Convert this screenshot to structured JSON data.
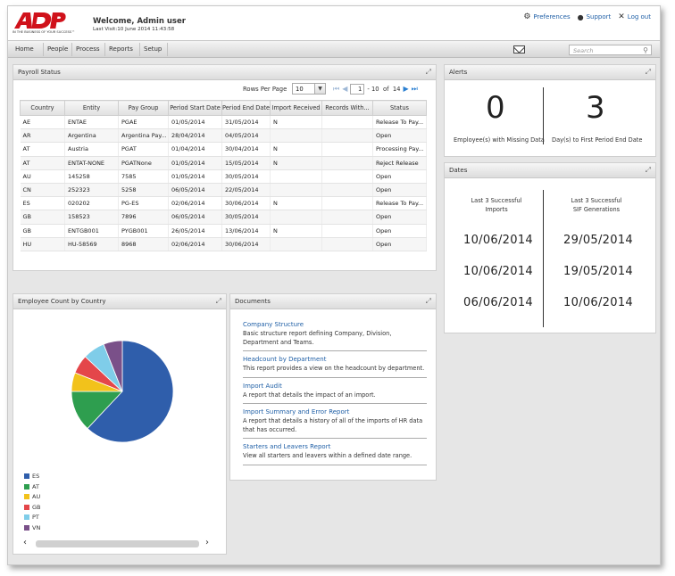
{
  "header": {
    "logo_text": "ADP",
    "logo_tagline": "IN THE BUSINESS OF YOUR SUCCESS™",
    "welcome": "Welcome, Admin user",
    "last_visit": "Last Visit:10 June 2014 11:43:58",
    "links": {
      "preferences": "Preferences",
      "support": "Support",
      "logout": "Log out"
    }
  },
  "nav": {
    "items": [
      "Home",
      "People",
      "Process",
      "Reports",
      "Setup"
    ],
    "search_placeholder": "Search"
  },
  "payroll": {
    "title": "Payroll Status",
    "rows_per_page_label": "Rows Per Page",
    "rows_per_page_value": "10",
    "page_value": "1",
    "page_range": "- 10  of  14",
    "columns": [
      "Country",
      "Entity",
      "Pay Group",
      "Period Start Date",
      "Period End Date",
      "Import Received",
      "Records With...",
      "Status"
    ],
    "rows": [
      [
        "AE",
        "ENTAE",
        "PGAE",
        "01/05/2014",
        "31/05/2014",
        "N",
        "",
        "Release To Pay..."
      ],
      [
        "AR",
        "Argentina",
        "Argentina Pay...",
        "28/04/2014",
        "04/05/2014",
        "",
        "",
        "Open"
      ],
      [
        "AT",
        "Austria",
        "PGAT",
        "01/04/2014",
        "30/04/2014",
        "N",
        "",
        "Processing Pay..."
      ],
      [
        "AT",
        "ENTAT-NONE",
        "PGATNone",
        "01/05/2014",
        "15/05/2014",
        "N",
        "",
        "Reject Release"
      ],
      [
        "AU",
        "145258",
        "7585",
        "01/05/2014",
        "30/05/2014",
        "",
        "",
        "Open"
      ],
      [
        "CN",
        "252323",
        "5258",
        "06/05/2014",
        "22/05/2014",
        "",
        "",
        "Open"
      ],
      [
        "ES",
        "020202",
        "PG-ES",
        "02/06/2014",
        "30/06/2014",
        "N",
        "",
        "Release To Pay..."
      ],
      [
        "GB",
        "158523",
        "7896",
        "06/05/2014",
        "30/05/2014",
        "",
        "",
        "Open"
      ],
      [
        "GB",
        "ENTGB001",
        "PYGB001",
        "26/05/2014",
        "13/06/2014",
        "N",
        "",
        "Open"
      ],
      [
        "HU",
        "HU-58569",
        "8968",
        "02/06/2014",
        "30/06/2014",
        "",
        "",
        "Open"
      ]
    ]
  },
  "alerts": {
    "title": "Alerts",
    "missing_data_count": "0",
    "missing_data_label": "Employee(s) with Missing Data",
    "days_count": "3",
    "days_label": "Day(s) to First Period End Date"
  },
  "dates": {
    "title": "Dates",
    "col1_header": [
      "Last 3 Successful",
      "Imports"
    ],
    "col2_header": [
      "Last 3 Successful",
      "SIF Generations"
    ],
    "imports": [
      "10/06/2014",
      "10/06/2014",
      "06/06/2014"
    ],
    "sif": [
      "29/05/2014",
      "19/05/2014",
      "10/06/2014"
    ]
  },
  "employee_count": {
    "title": "Employee Count by Country",
    "legend": [
      {
        "label": "ES",
        "color": "#2f5eab"
      },
      {
        "label": "AT",
        "color": "#2e9e4f"
      },
      {
        "label": "AU",
        "color": "#f2c21b"
      },
      {
        "label": "GB",
        "color": "#e4464a"
      },
      {
        "label": "PT",
        "color": "#7fcde9"
      },
      {
        "label": "VN",
        "color": "#7a5089"
      }
    ]
  },
  "chart_data": {
    "type": "pie",
    "title": "Employee Count by Country",
    "labels": [
      "ES",
      "AT",
      "AU",
      "GB",
      "PT",
      "VN"
    ],
    "values": [
      62,
      13,
      6,
      6,
      7,
      6
    ],
    "colors": [
      "#2f5eab",
      "#2e9e4f",
      "#f2c21b",
      "#e4464a",
      "#7fcde9",
      "#7a5089"
    ],
    "legend_position": "bottom-left"
  },
  "documents": {
    "title": "Documents",
    "items": [
      {
        "title": "Company Structure",
        "desc": "Basic structure report defining Company, Division, Department and Teams."
      },
      {
        "title": "Headcount by Department",
        "desc": "This report provides a view on the headcount by department."
      },
      {
        "title": "Import Audit",
        "desc": "A report that details the impact of an import."
      },
      {
        "title": "Import Summary and Error Report",
        "desc": "A report that details a history of all of the imports of HR data that has occurred."
      },
      {
        "title": "Starters and Leavers Report",
        "desc": "View all starters and leavers within a defined date range."
      }
    ]
  }
}
